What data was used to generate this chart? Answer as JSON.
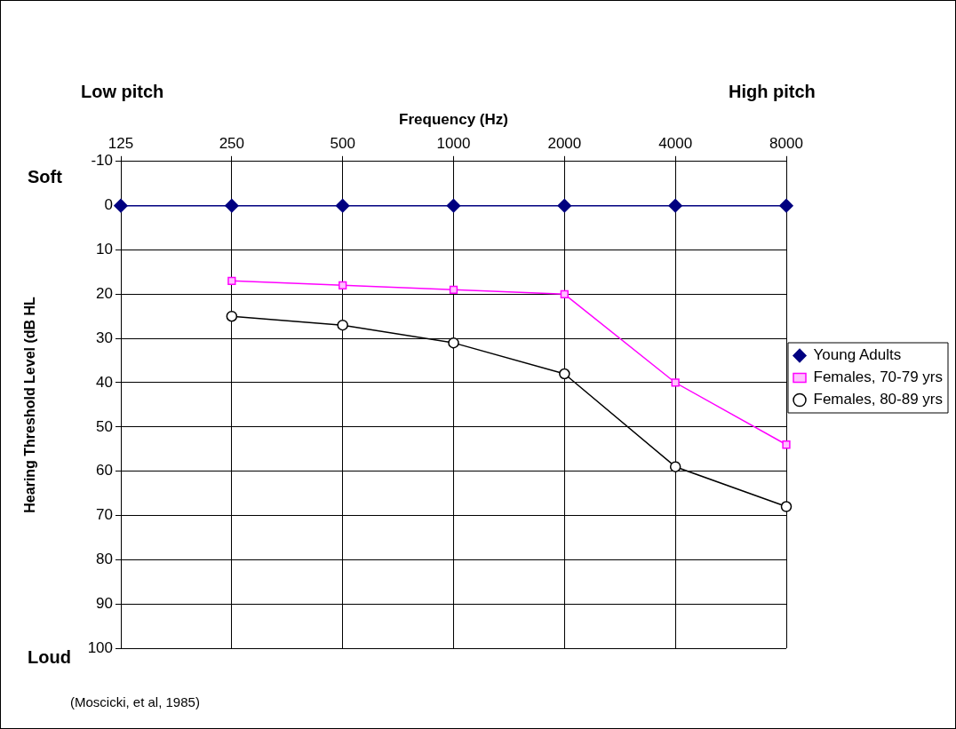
{
  "chart_data": {
    "type": "line",
    "xlabel": "Frequency (Hz)",
    "ylabel": "Hearing Threshold Level (dB HL",
    "categories": [
      "125",
      "250",
      "500",
      "1000",
      "2000",
      "4000",
      "8000"
    ],
    "series": [
      {
        "name": "Young Adults",
        "color": "#000080",
        "marker": "diamond",
        "values": [
          0,
          0,
          0,
          0,
          0,
          0,
          0
        ]
      },
      {
        "name": "Females, 70-79 yrs",
        "color": "#ff00ff",
        "marker": "square",
        "values": [
          null,
          17,
          18,
          19,
          20,
          40,
          54
        ]
      },
      {
        "name": "Females, 80-89 yrs",
        "color": "#000000",
        "marker": "circle",
        "values": [
          null,
          25,
          27,
          31,
          38,
          59,
          68
        ]
      }
    ],
    "ylim": [
      100,
      -10
    ],
    "yticks": [
      -10,
      0,
      10,
      20,
      30,
      40,
      50,
      60,
      70,
      80,
      90,
      100
    ],
    "grid": true,
    "legend": "right",
    "line_style": "solid",
    "annotations": [
      "Low pitch",
      "High pitch",
      "Soft",
      "Loud",
      "(Moscicki, et al, 1985)"
    ]
  }
}
